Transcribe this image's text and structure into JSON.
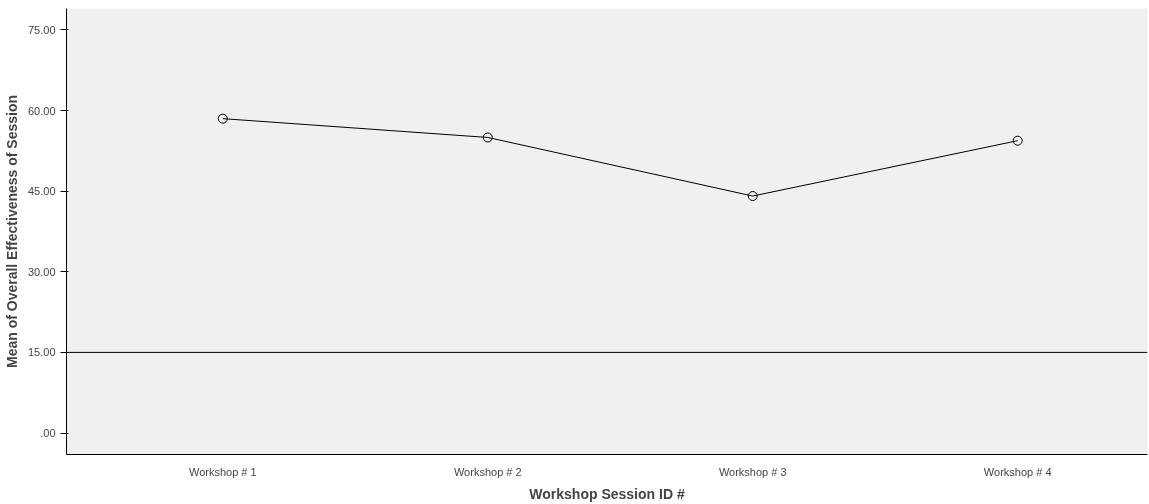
{
  "chart_data": {
    "type": "line",
    "xlabel": "Workshop Session ID #",
    "ylabel": "Mean of Overall Effectiveness of Session",
    "categories": [
      "Workshop # 1",
      "Workshop # 2",
      "Workshop # 3",
      "Workshop # 4"
    ],
    "series": [
      {
        "color": "#000000",
        "values": [
          58.5,
          55.0,
          44.1,
          54.4
        ]
      }
    ],
    "ylim": [
      -4,
      79
    ],
    "yticks": [
      {
        "value": 0,
        "label": ".00"
      },
      {
        "value": 15,
        "label": "15.00"
      },
      {
        "value": 30,
        "label": "30.00"
      },
      {
        "value": 45,
        "label": "45.00"
      },
      {
        "value": 60,
        "label": "60.00"
      },
      {
        "value": 75,
        "label": "75.00"
      }
    ],
    "ref_lines": [
      {
        "axis": "y",
        "value": 15,
        "color": "#000000"
      }
    ],
    "grid": false,
    "marker": "circle",
    "line_style": "solid"
  }
}
